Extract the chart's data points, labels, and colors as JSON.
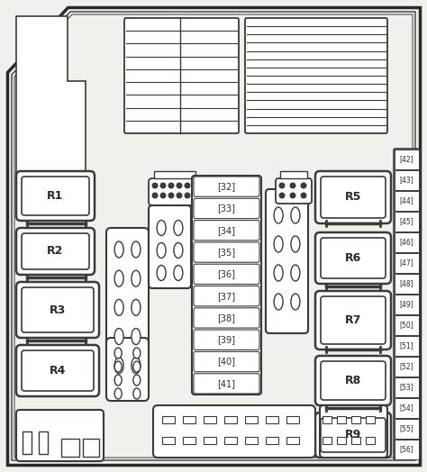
{
  "bg_color": "#f0f0ec",
  "border_color": "#2a2a2a",
  "line_color": "#3a3a3a",
  "fill_color": "#ffffff",
  "fig_width": 4.74,
  "fig_height": 5.24,
  "fuse_numbers": [
    "32",
    "33",
    "34",
    "35",
    "36",
    "37",
    "38",
    "39",
    "40",
    "41"
  ],
  "side_numbers": [
    "42",
    "43",
    "44",
    "45",
    "46",
    "47",
    "48",
    "49",
    "50",
    "51",
    "52",
    "53",
    "54",
    "55",
    "56"
  ]
}
